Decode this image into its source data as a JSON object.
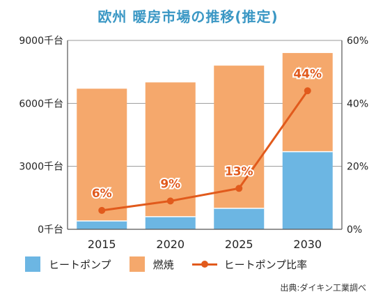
{
  "chart_data": {
    "type": "bar",
    "title": "欧州 暖房市場の推移(推定)",
    "categories": [
      "2015",
      "2020",
      "2025",
      "2030"
    ],
    "series": [
      {
        "name": "ヒートポンプ",
        "values": [
          400,
          600,
          1000,
          3700
        ],
        "color": "#6cb6e3"
      },
      {
        "name": "燃焼",
        "values": [
          6300,
          6400,
          6800,
          4700
        ],
        "color": "#f5a86c"
      }
    ],
    "line_series": {
      "name": "ヒートポンプ比率",
      "values": [
        6,
        9,
        13,
        44
      ],
      "color": "#e15a1c"
    },
    "data_labels": [
      "6%",
      "9%",
      "13%",
      "44%"
    ],
    "left_axis": {
      "ticks": [
        "0千台",
        "3000千台",
        "6000千台",
        "9000千台"
      ],
      "ylim": [
        0,
        9000
      ]
    },
    "right_axis": {
      "ticks": [
        "0%",
        "20%",
        "40%",
        "60%"
      ],
      "ylim": [
        0,
        60
      ]
    },
    "grid": true,
    "stacked": true,
    "legend_position": "bottom",
    "source": "出典:ダイキン工業調べ"
  }
}
